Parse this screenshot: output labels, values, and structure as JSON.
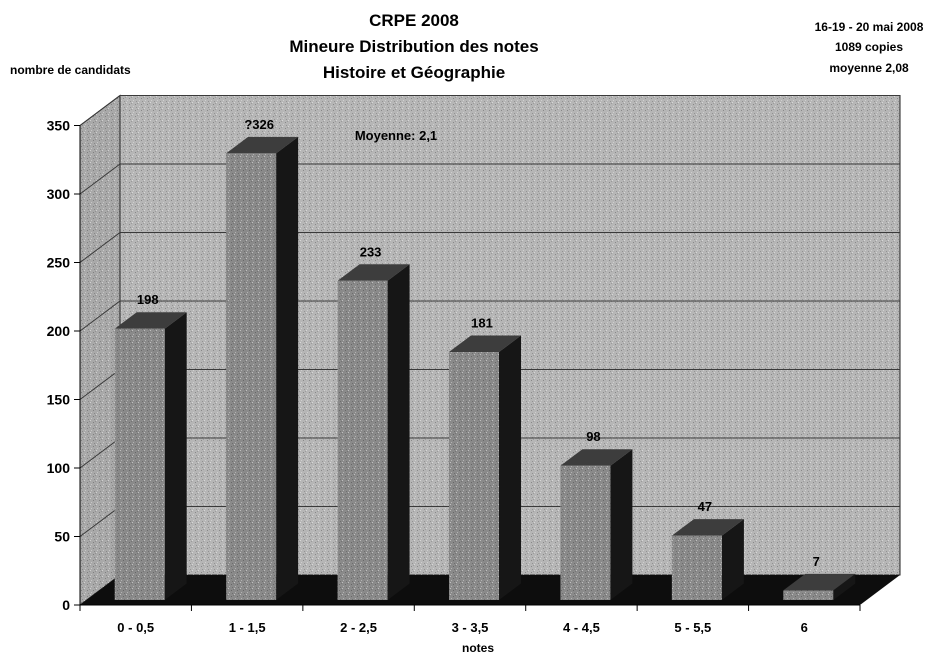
{
  "chart_data": {
    "type": "bar",
    "title_lines": [
      "CRPE 2008",
      "Mineure Distribution des notes",
      "Histoire et Géographie"
    ],
    "top_right_notes": [
      "16-19 - 20 mai 2008",
      "1089 copies",
      "moyenne 2,08"
    ],
    "ylabel": "nombre de candidats",
    "xlabel": "notes",
    "categories": [
      "0 - 0,5",
      "1 - 1,5",
      "2 - 2,5",
      "3 - 3,5",
      "4 - 4,5",
      "5 - 5,5",
      "6"
    ],
    "values": [
      198,
      326,
      233,
      181,
      98,
      47,
      7
    ],
    "value_labels": [
      "198",
      "?326",
      "233",
      "181",
      "98",
      "47",
      "7"
    ],
    "yticks": [
      0,
      50,
      100,
      150,
      200,
      250,
      300,
      350
    ],
    "ylim": [
      0,
      350
    ],
    "annotation": "Moyenne: 2,1",
    "grid": true,
    "legend": "none",
    "colors": {
      "bar_front": "#8a8a8a",
      "bar_top": "#3d3d3d",
      "bar_side": "#161616",
      "wall": "#b6b6b6",
      "side_wall": "#a9a9a9",
      "floor": "#0d0d0d",
      "grid": "#3a3a3a"
    }
  }
}
